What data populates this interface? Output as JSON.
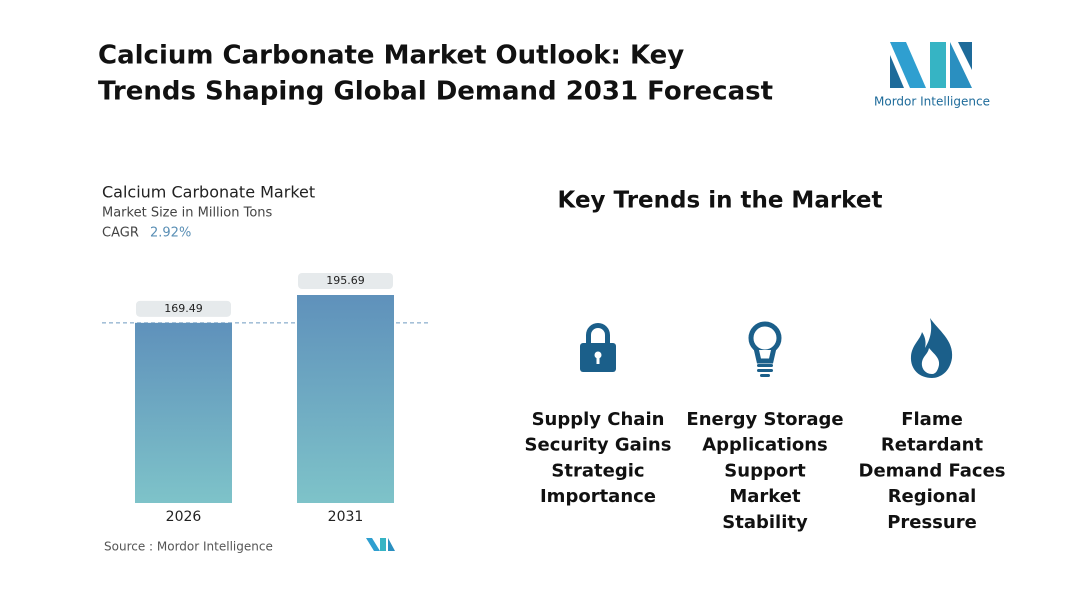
{
  "header": {
    "title_lines": [
      "Calcium Carbonate Market Outlook: Key",
      "Trends Shaping Global Demand 2031 Forecast"
    ],
    "logo_text": "Mordor Intelligence"
  },
  "chart_data": {
    "type": "bar",
    "title": "Calcium Carbonate Market",
    "subtitle": "Market Size in Million Tons",
    "cagr_label": "CAGR",
    "cagr": "2.92%",
    "categories": [
      "2026",
      "2031"
    ],
    "values": [
      169.49,
      195.69
    ],
    "source": "Source :  Mordor Intelligence"
  },
  "trends": {
    "title": "Key Trends in the Market",
    "items": [
      [
        "Supply Chain",
        "Security Gains",
        "Strategic",
        "Importance"
      ],
      [
        "Energy Storage",
        "Applications",
        "Support",
        "Market",
        "Stability"
      ],
      [
        "Flame",
        "Retardant",
        "Demand Faces",
        "Regional",
        "Pressure"
      ]
    ]
  }
}
